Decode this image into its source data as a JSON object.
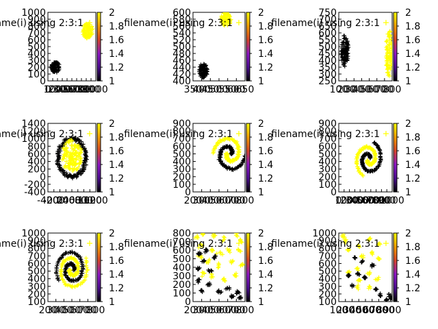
{
  "legend_label": "filename(i) using 2:3:1",
  "legend_marker": "+",
  "palette": {
    "class1": "#000000",
    "class2": "#ffff00",
    "axis": "#000000",
    "background": "#ffffff"
  },
  "colorbar": {
    "min": 1,
    "max": 2,
    "ticks": [
      "1",
      "1.2",
      "1.4",
      "1.6",
      "1.8",
      "2"
    ]
  },
  "chart_data": [
    {
      "type": "scatter",
      "xlim": [
        0,
        1000
      ],
      "ylim": [
        0,
        1000
      ],
      "xticks": [
        "0",
        "100",
        "200",
        "300",
        "400",
        "500",
        "600",
        "700",
        "800",
        "900",
        "1000"
      ],
      "yticks": [
        "0",
        "100",
        "200",
        "300",
        "400",
        "500",
        "600",
        "700",
        "800",
        "900",
        "1000"
      ],
      "clusters": [
        {
          "class": 1,
          "shape": "blob",
          "cx": 160,
          "cy": 200,
          "rx": 90,
          "ry": 80,
          "n": 80
        },
        {
          "class": 2,
          "shape": "blob",
          "cx": 830,
          "cy": 730,
          "rx": 110,
          "ry": 110,
          "n": 80
        }
      ]
    },
    {
      "type": "scatter",
      "xlim": [
        350,
        650
      ],
      "ylim": [
        400,
        600
      ],
      "xticks": [
        "350",
        "400",
        "450",
        "500",
        "550",
        "600",
        "650"
      ],
      "yticks": [
        "400",
        "420",
        "440",
        "460",
        "480",
        "500",
        "520",
        "540",
        "560",
        "580",
        "600"
      ],
      "clusters": [
        {
          "class": 1,
          "shape": "blob",
          "cx": 410,
          "cy": 430,
          "rx": 25,
          "ry": 22,
          "n": 80
        },
        {
          "class": 2,
          "shape": "blob",
          "cx": 540,
          "cy": 580,
          "rx": 30,
          "ry": 20,
          "n": 80
        }
      ]
    },
    {
      "type": "scatter",
      "xlim": [
        100,
        800
      ],
      "ylim": [
        250,
        750
      ],
      "xticks": [
        "100",
        "200",
        "300",
        "400",
        "500",
        "600",
        "700",
        "800"
      ],
      "yticks": [
        "250",
        "300",
        "350",
        "400",
        "450",
        "500",
        "550",
        "600",
        "650",
        "700",
        "750"
      ],
      "clusters": [
        {
          "class": 1,
          "shape": "blob",
          "cx": 180,
          "cy": 470,
          "rx": 50,
          "ry": 120,
          "n": 90
        },
        {
          "class": 2,
          "shape": "blob",
          "cx": 760,
          "cy": 450,
          "rx": 45,
          "ry": 170,
          "n": 90
        }
      ]
    },
    {
      "type": "scatter",
      "xlim": [
        -400,
        1200
      ],
      "ylim": [
        -400,
        1400
      ],
      "xticks": [
        "-400",
        "-200",
        "0",
        "200",
        "400",
        "600",
        "800",
        "1000",
        "1200"
      ],
      "yticks": [
        "-400",
        "-200",
        "0",
        "200",
        "400",
        "600",
        "800",
        "1000",
        "1200",
        "1400"
      ],
      "clusters": [
        {
          "class": 1,
          "shape": "ring",
          "cx": 400,
          "cy": 500,
          "r": 650,
          "n": 140
        },
        {
          "class": 2,
          "shape": "blob",
          "cx": 400,
          "cy": 550,
          "rx": 350,
          "ry": 420,
          "n": 140
        }
      ]
    },
    {
      "type": "scatter",
      "xlim": [
        200,
        800
      ],
      "ylim": [
        0,
        900
      ],
      "xticks": [
        "200",
        "300",
        "400",
        "500",
        "600",
        "700",
        "800"
      ],
      "yticks": [
        "0",
        "100",
        "200",
        "300",
        "400",
        "500",
        "600",
        "700",
        "800",
        "900"
      ],
      "clusters": [
        {
          "class": 1,
          "shape": "spiral",
          "cx": 620,
          "cy": 500,
          "scalex": 300,
          "scaley": 400,
          "rot": 0,
          "turns": 1.0,
          "n": 110
        },
        {
          "class": 2,
          "shape": "spiral",
          "cx": 620,
          "cy": 500,
          "scalex": 300,
          "scaley": 400,
          "rot": 3.14159,
          "turns": 1.0,
          "n": 110
        }
      ]
    },
    {
      "type": "scatter",
      "xlim": [
        0,
        1000
      ],
      "ylim": [
        0,
        900
      ],
      "xticks": [
        "0",
        "100",
        "200",
        "300",
        "400",
        "500",
        "600",
        "700",
        "800",
        "900",
        "1000"
      ],
      "yticks": [
        "0",
        "100",
        "200",
        "300",
        "400",
        "500",
        "600",
        "700",
        "800",
        "900"
      ],
      "clusters": [
        {
          "class": 1,
          "shape": "spiral",
          "cx": 560,
          "cy": 430,
          "scalex": 420,
          "scaley": 380,
          "rot": 0.6,
          "turns": 1.1,
          "n": 110
        },
        {
          "class": 2,
          "shape": "spiral",
          "cx": 560,
          "cy": 430,
          "scalex": 420,
          "scaley": 380,
          "rot": 3.74,
          "turns": 1.1,
          "n": 110
        }
      ]
    },
    {
      "type": "scatter",
      "xlim": [
        200,
        800
      ],
      "ylim": [
        100,
        1000
      ],
      "xticks": [
        "200",
        "300",
        "400",
        "500",
        "600",
        "700",
        "800"
      ],
      "yticks": [
        "100",
        "200",
        "300",
        "400",
        "500",
        "600",
        "700",
        "800",
        "900",
        "1000"
      ],
      "clusters": [
        {
          "class": 1,
          "shape": "spiral",
          "cx": 500,
          "cy": 520,
          "scalex": 320,
          "scaley": 440,
          "rot": 0,
          "turns": 1.6,
          "n": 120
        },
        {
          "class": 2,
          "shape": "spiral",
          "cx": 500,
          "cy": 520,
          "scalex": 320,
          "scaley": 440,
          "rot": 3.14159,
          "turns": 1.6,
          "n": 120
        }
      ]
    },
    {
      "type": "scatter",
      "xlim": [
        200,
        800
      ],
      "ylim": [
        0,
        800
      ],
      "xticks": [
        "200",
        "300",
        "400",
        "500",
        "600",
        "700",
        "800"
      ],
      "yticks": [
        "0",
        "100",
        "200",
        "300",
        "400",
        "500",
        "600",
        "700",
        "800"
      ],
      "clusters": [
        {
          "class": 2,
          "shape": "points",
          "pts": [
            [
              250,
              750
            ],
            [
              320,
              780
            ],
            [
              450,
              770
            ],
            [
              560,
              740
            ],
            [
              700,
              780
            ],
            [
              760,
              700
            ],
            [
              300,
              650
            ],
            [
              430,
              600
            ],
            [
              520,
              560
            ],
            [
              620,
              600
            ],
            [
              720,
              600
            ],
            [
              280,
              520
            ],
            [
              380,
              480
            ],
            [
              500,
              420
            ],
            [
              640,
              470
            ],
            [
              760,
              420
            ],
            [
              420,
              300
            ],
            [
              560,
              260
            ],
            [
              700,
              300
            ],
            [
              320,
              330
            ]
          ],
          "spread": 12,
          "per": 5
        },
        {
          "class": 1,
          "shape": "points",
          "pts": [
            [
              270,
              560
            ],
            [
              350,
              600
            ],
            [
              330,
              470
            ],
            [
              260,
              380
            ],
            [
              390,
              360
            ],
            [
              260,
              250
            ],
            [
              380,
              200
            ],
            [
              450,
              520
            ],
            [
              600,
              160
            ],
            [
              740,
              40
            ],
            [
              720,
              100
            ],
            [
              500,
              120
            ],
            [
              300,
              120
            ],
            [
              650,
              60
            ]
          ],
          "spread": 10,
          "per": 6
        }
      ]
    },
    {
      "type": "scatter",
      "xlim": [
        100,
        900
      ],
      "ylim": [
        100,
        1000
      ],
      "xticks": [
        "100",
        "200",
        "300",
        "400",
        "500",
        "600",
        "700",
        "800",
        "900"
      ],
      "yticks": [
        "100",
        "200",
        "300",
        "400",
        "500",
        "600",
        "700",
        "800",
        "900",
        "1000"
      ],
      "clusters": [
        {
          "class": 2,
          "shape": "points",
          "pts": [
            [
              160,
              950
            ],
            [
              200,
              900
            ],
            [
              560,
              920
            ],
            [
              400,
              830
            ],
            [
              700,
              860
            ],
            [
              240,
              780
            ],
            [
              600,
              750
            ],
            [
              450,
              690
            ],
            [
              700,
              640
            ],
            [
              380,
              540
            ],
            [
              560,
              470
            ],
            [
              420,
              380
            ],
            [
              680,
              390
            ],
            [
              250,
              480
            ],
            [
              380,
              280
            ],
            [
              560,
              290
            ]
          ],
          "spread": 12,
          "per": 5
        },
        {
          "class": 1,
          "shape": "points",
          "pts": [
            [
              340,
              670
            ],
            [
              440,
              620
            ],
            [
              250,
              440
            ],
            [
              600,
              580
            ],
            [
              390,
              460
            ],
            [
              720,
              180
            ],
            [
              880,
              140
            ],
            [
              820,
              120
            ],
            [
              300,
              310
            ],
            [
              500,
              420
            ],
            [
              650,
              260
            ],
            [
              860,
              180
            ]
          ],
          "spread": 10,
          "per": 6
        }
      ]
    }
  ]
}
